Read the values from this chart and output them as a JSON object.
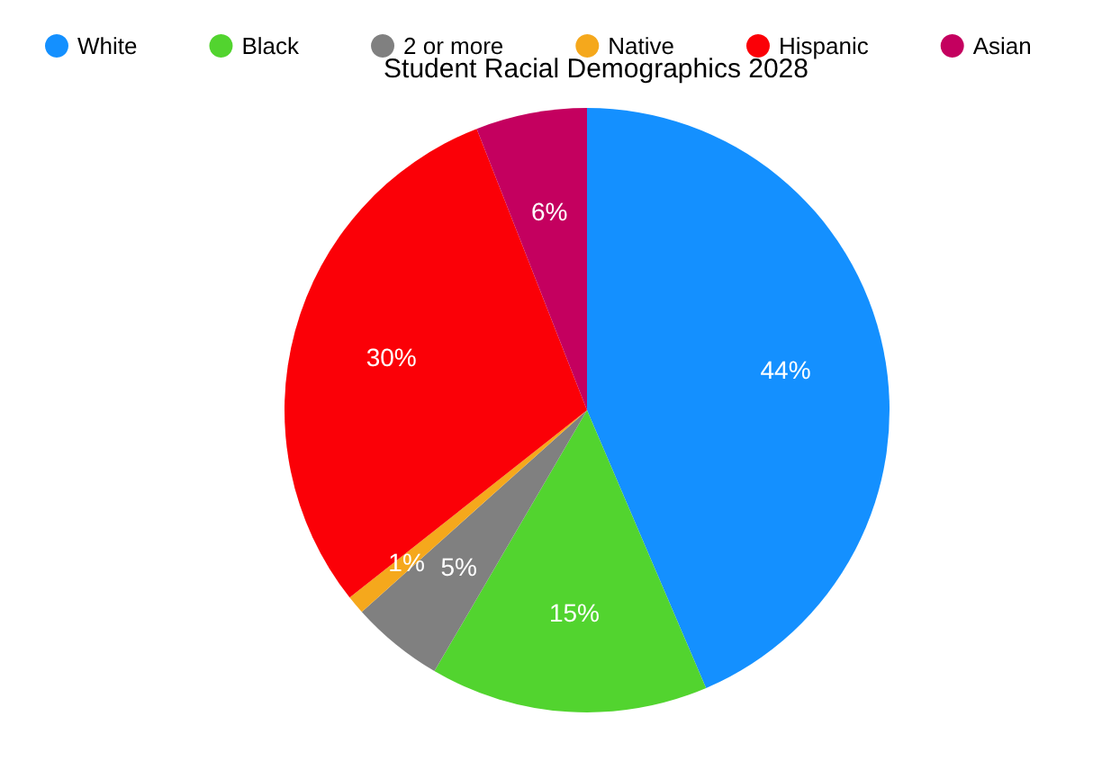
{
  "chart_data": {
    "type": "pie",
    "title": "Student Racial Demographics 2028",
    "categories": [
      "White",
      "Black",
      "2 or more",
      "Native",
      "Hispanic",
      "Asian"
    ],
    "values": [
      44,
      15,
      5,
      1,
      30,
      6
    ],
    "value_labels": [
      "44%",
      "15%",
      "5%",
      "1%",
      "30%",
      "6%"
    ],
    "colors": [
      "#1490ff",
      "#52d42f",
      "#808080",
      "#f5a81c",
      "#fb0007",
      "#c4005f"
    ],
    "legend": "top"
  }
}
